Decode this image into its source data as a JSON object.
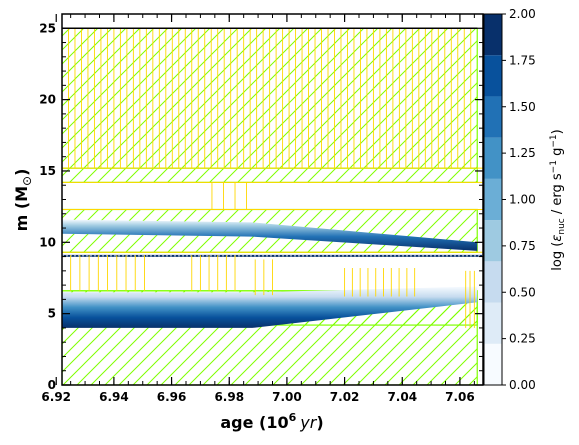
{
  "chart_data": {
    "type": "kippenhahn",
    "xlabel_prefix": "age (10",
    "xlabel_exp": "6",
    "xlabel_unit": "yr",
    "xlabel_suffix": ")",
    "ylabel_prefix": "m (M",
    "ylabel_sub": "⊙",
    "ylabel_suffix": ")",
    "xlim": [
      6.922,
      7.068
    ],
    "ylim": [
      0,
      26
    ],
    "x_ticks": [
      "6.92",
      "6.94",
      "6.96",
      "6.98",
      "7.00",
      "7.02",
      "7.04",
      "7.06"
    ],
    "y_ticks": [
      "0",
      "5",
      "10",
      "15",
      "20",
      "25"
    ],
    "total_mass": 25,
    "colorbar": {
      "label": "log (ε_nuc / erg s⁻¹ g⁻¹)",
      "ticks": [
        "0.00",
        "0.25",
        "0.50",
        "0.75",
        "1.00",
        "1.25",
        "1.50",
        "1.75",
        "2.00"
      ],
      "range": [
        0,
        2
      ],
      "colors": [
        "#f7fbff",
        "#deebf7",
        "#c6dbef",
        "#9ecae1",
        "#6baed6",
        "#4292c6",
        "#2171b5",
        "#08519c",
        "#08306b"
      ]
    },
    "convective_regions": [
      {
        "name": "outer-envelope",
        "x": [
          6.922,
          7.066
        ],
        "y": [
          15.2,
          25
        ]
      },
      {
        "name": "lower-core",
        "x": [
          6.922,
          7.066
        ],
        "y": [
          0,
          6.6
        ]
      }
    ],
    "overshoot_regions": [
      {
        "name": "upper-shell",
        "x": [
          6.922,
          7.066
        ],
        "y": [
          14.2,
          15.2
        ]
      },
      {
        "name": "mid-shell",
        "x": [
          6.922,
          7.066
        ],
        "y": [
          9.3,
          12.3
        ]
      },
      {
        "name": "core-top",
        "x": [
          6.922,
          7.066
        ],
        "y": [
          4.2,
          6.6
        ]
      }
    ],
    "burning_shells": [
      {
        "name": "upper-burning-band",
        "x": [
          6.922,
          6.988,
          7.066
        ],
        "y_bottom": [
          10.6,
          10.4,
          9.4
        ],
        "y_top": [
          11.6,
          11.4,
          10.0
        ]
      },
      {
        "name": "lower-burning-band",
        "x": [
          6.922,
          6.988,
          7.066
        ],
        "y_bottom": [
          4.0,
          4.0,
          5.8
        ],
        "y_top": [
          6.5,
          6.5,
          6.9
        ]
      }
    ]
  }
}
